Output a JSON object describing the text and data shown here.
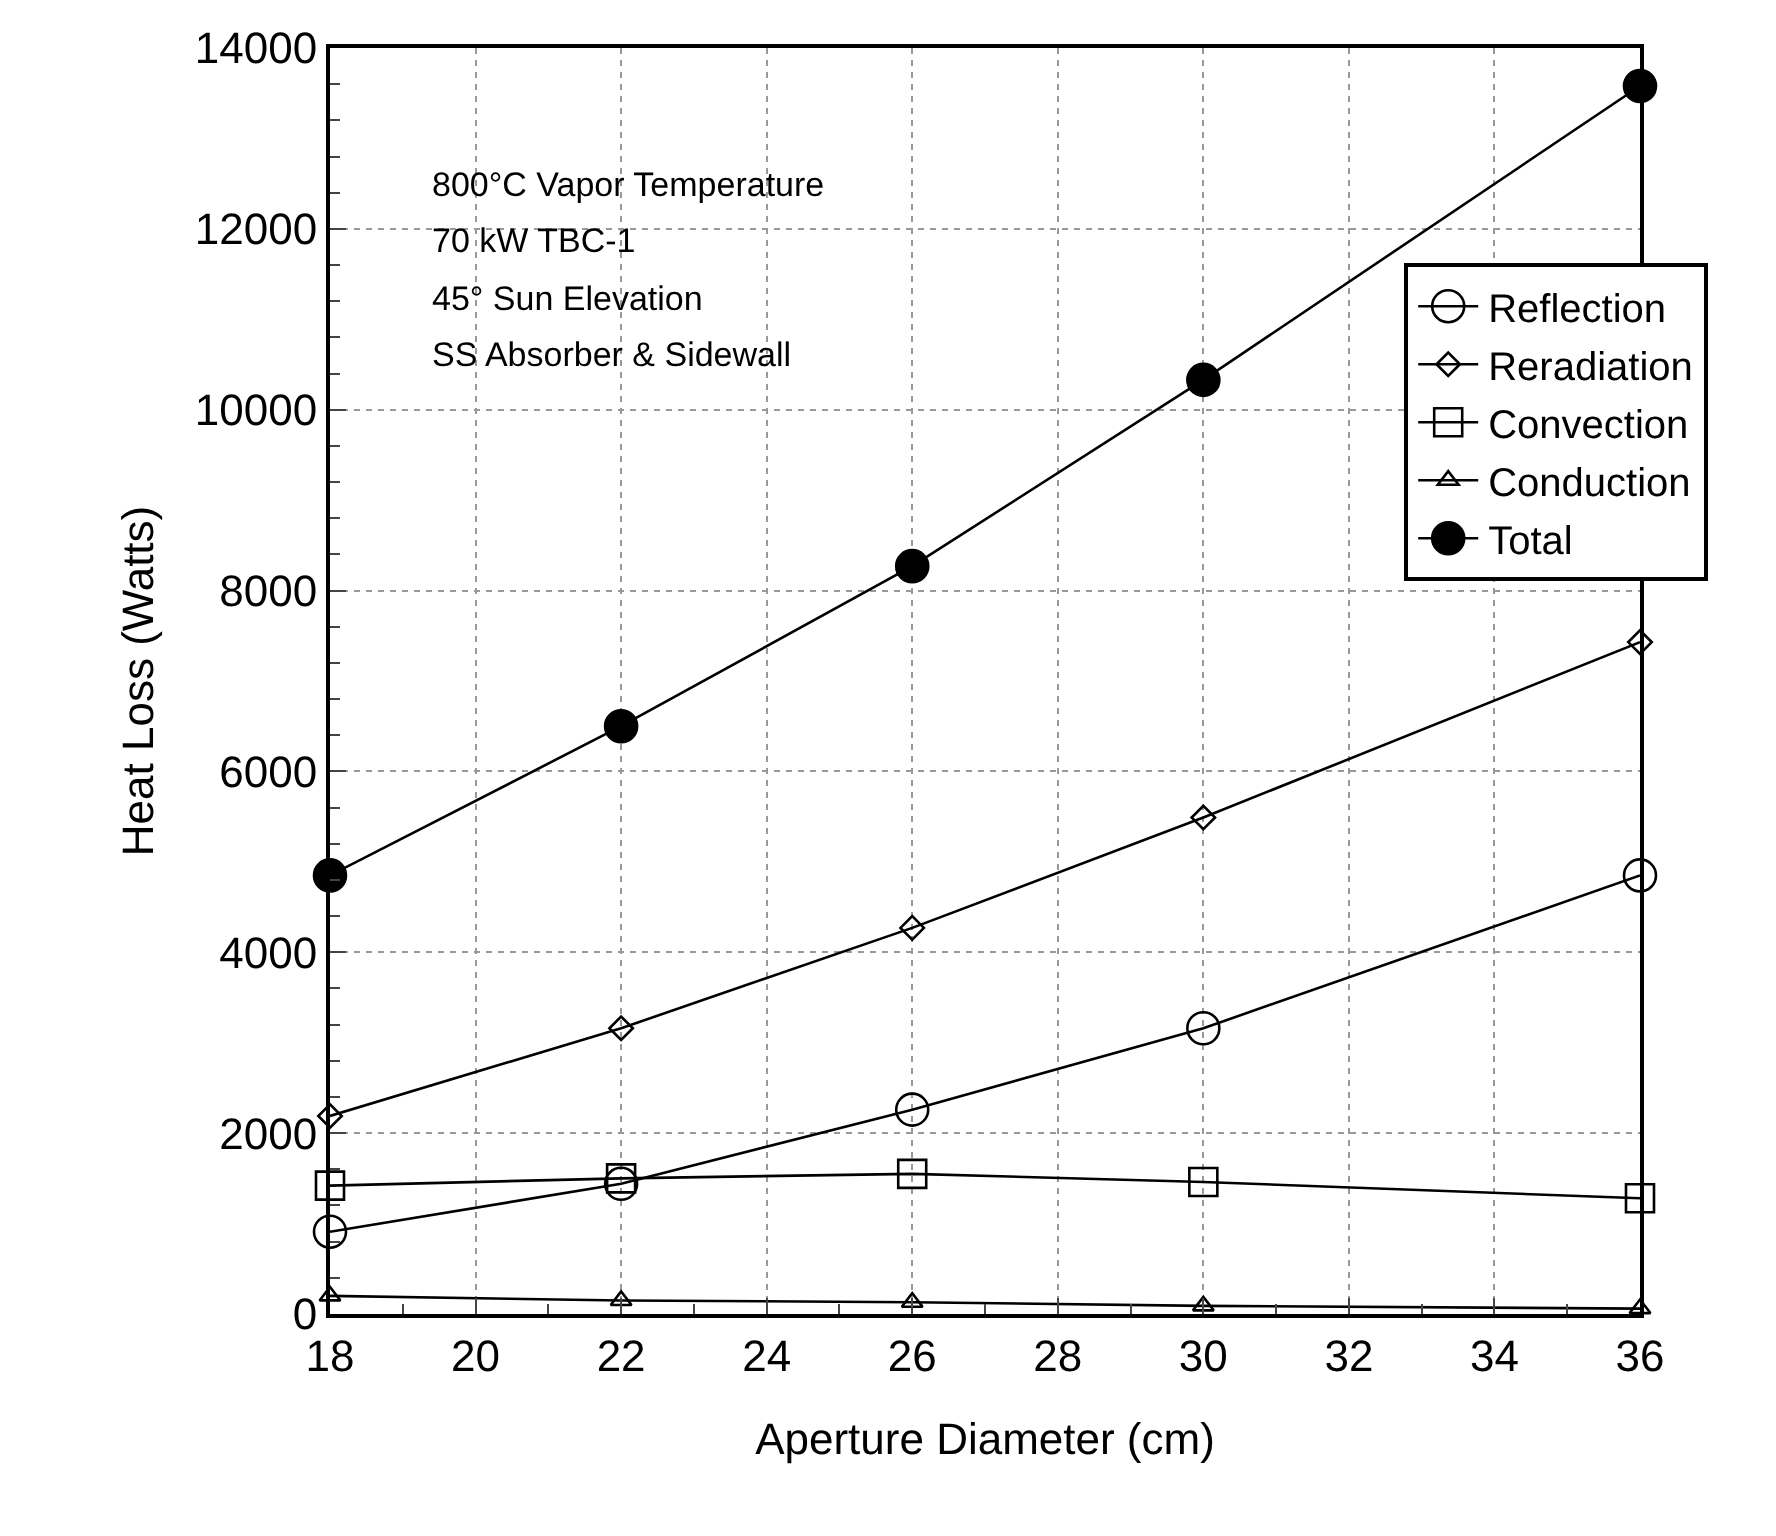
{
  "chart_data": {
    "type": "line",
    "xlabel": "Aperture Diameter (cm)",
    "ylabel": "Heat Loss (Watts)",
    "x": [
      18,
      22,
      26,
      30,
      36
    ],
    "series": [
      {
        "name": "Reflection",
        "color": "#000000",
        "marker": "circle",
        "values": [
          910,
          1440,
          2260,
          3160,
          4850
        ]
      },
      {
        "name": "Reradiation",
        "color": "#000000",
        "marker": "diamond",
        "values": [
          2190,
          3160,
          4270,
          5490,
          7430
        ]
      },
      {
        "name": "Convection",
        "color": "#000000",
        "marker": "square",
        "values": [
          1420,
          1500,
          1550,
          1460,
          1280
        ]
      },
      {
        "name": "Conduction",
        "color": "#000000",
        "marker": "triangle",
        "values": [
          200,
          150,
          130,
          90,
          60
        ]
      },
      {
        "name": "Total",
        "color": "#000000",
        "marker": "circle",
        "values": [
          4850,
          6500,
          8270,
          10330,
          13580
        ]
      }
    ],
    "xlim": [
      18,
      36
    ],
    "xticks": [
      18,
      20,
      22,
      24,
      26,
      28,
      30,
      32,
      34,
      36
    ],
    "ylim": [
      0,
      14000
    ],
    "yticks": [
      0,
      2000,
      4000,
      6000,
      8000,
      10000,
      12000,
      14000
    ],
    "grid": true,
    "legend": "top right",
    "line_style": "solid",
    "annotations": [
      "800°C Vapor Temperature",
      "70 kW TBC-1",
      "45° Sun Elevation",
      "SS Absorber & Sidewall"
    ]
  }
}
